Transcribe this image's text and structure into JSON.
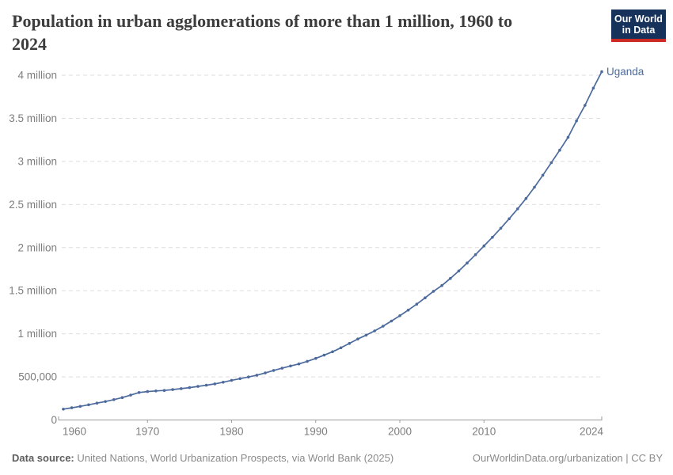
{
  "header": {
    "title_line1": "Population in urban agglomerations of more than 1 million, 1960 to",
    "title_line2": "2024",
    "logo": {
      "line1": "Our World",
      "line2": "in Data"
    }
  },
  "footer": {
    "source_label": "Data source:",
    "source_text": " United Nations, World Urbanization Prospects, via World Bank (2025)",
    "credit": "OurWorldinData.org/urbanization | CC BY"
  },
  "colors": {
    "line": "#4c6a9c",
    "entity_label": "#4c6a9c",
    "grid": "#dedede",
    "axis": "#9b9b9b",
    "tick_text": "#7d7d7d",
    "title": "#3d3d3d",
    "logo_bg": "#16325a",
    "logo_red": "#cc2a23"
  },
  "chart_data": {
    "type": "line",
    "title": "Population in urban agglomerations of more than 1 million, 1960 to 2024",
    "xlabel": "",
    "ylabel": "",
    "xlim": [
      1960,
      2024
    ],
    "ylim": [
      0,
      4000000
    ],
    "grid": "horizontal-dashed",
    "legend_position": "end-of-line-label",
    "end_label": "Uganda",
    "x_ticks": [
      {
        "year": 1960,
        "label": "1960"
      },
      {
        "year": 1970,
        "label": "1970"
      },
      {
        "year": 1980,
        "label": "1980"
      },
      {
        "year": 1990,
        "label": "1990"
      },
      {
        "year": 2000,
        "label": "2000"
      },
      {
        "year": 2010,
        "label": "2010"
      },
      {
        "year": 2024,
        "label": "2024"
      }
    ],
    "y_ticks": [
      {
        "value": 0,
        "label": "0"
      },
      {
        "value": 500000,
        "label": "500,000"
      },
      {
        "value": 1000000,
        "label": "1 million"
      },
      {
        "value": 1500000,
        "label": "1.5 million"
      },
      {
        "value": 2000000,
        "label": "2 million"
      },
      {
        "value": 2500000,
        "label": "2.5 million"
      },
      {
        "value": 3000000,
        "label": "3 million"
      },
      {
        "value": 3500000,
        "label": "3.5 million"
      },
      {
        "value": 4000000,
        "label": "4 million"
      }
    ],
    "x": [
      1960,
      1961,
      1962,
      1963,
      1964,
      1965,
      1966,
      1967,
      1968,
      1969,
      1970,
      1971,
      1972,
      1973,
      1974,
      1975,
      1976,
      1977,
      1978,
      1979,
      1980,
      1981,
      1982,
      1983,
      1984,
      1985,
      1986,
      1987,
      1988,
      1989,
      1990,
      1991,
      1992,
      1993,
      1994,
      1995,
      1996,
      1997,
      1998,
      1999,
      2000,
      2001,
      2002,
      2003,
      2004,
      2005,
      2006,
      2007,
      2008,
      2009,
      2010,
      2011,
      2012,
      2013,
      2014,
      2015,
      2016,
      2017,
      2018,
      2019,
      2020,
      2021,
      2022,
      2023,
      2024
    ],
    "series": [
      {
        "name": "Uganda",
        "color": "#4c6a9c",
        "values": [
          126000,
          141000,
          158000,
          176000,
          196000,
          214000,
          236000,
          260000,
          288000,
          319000,
          330000,
          337000,
          343000,
          353000,
          364000,
          376000,
          389000,
          403000,
          419000,
          438000,
          460000,
          479000,
          499000,
          520000,
          546000,
          575000,
          601000,
          626000,
          650000,
          681000,
          715000,
          752000,
          792000,
          838000,
          888000,
          940000,
          985000,
          1033000,
          1088000,
          1148000,
          1210000,
          1275000,
          1344000,
          1417000,
          1493000,
          1560000,
          1642000,
          1729000,
          1821000,
          1918000,
          2020000,
          2120000,
          2225000,
          2335000,
          2450000,
          2570000,
          2700000,
          2840000,
          2985000,
          3130000,
          3280000,
          3470000,
          3650000,
          3850000,
          4040000
        ]
      }
    ]
  }
}
